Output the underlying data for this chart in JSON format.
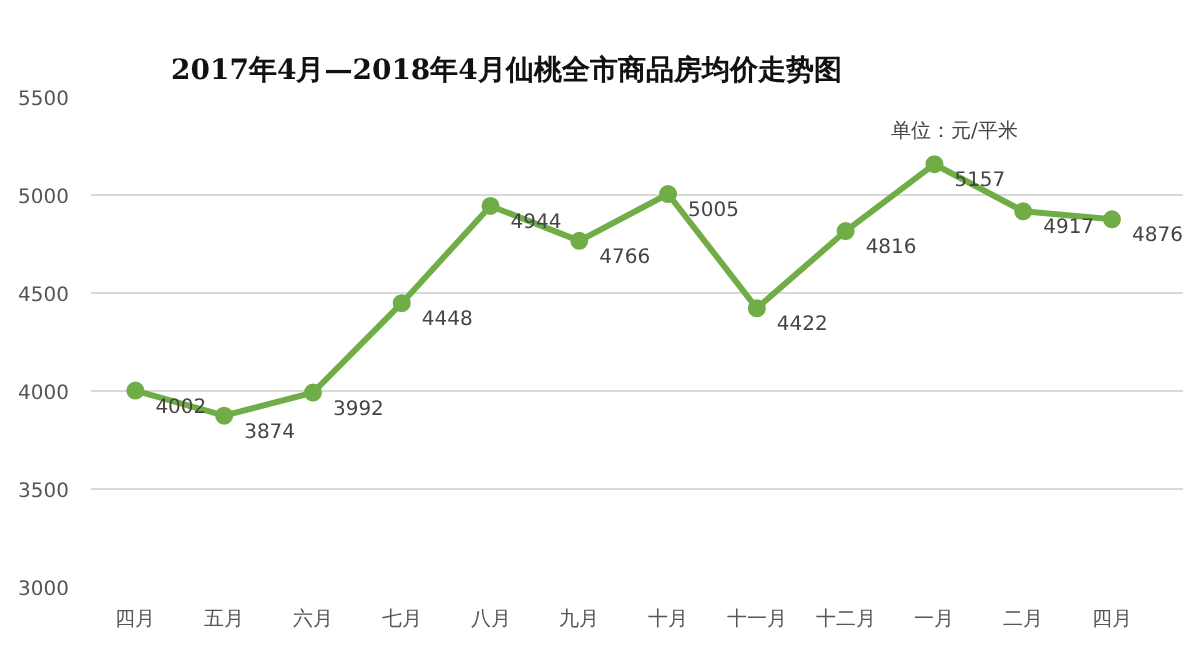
{
  "chart_data": {
    "type": "line",
    "title": "2017年4月—2018年4月仙桃全市商品房均价走势图",
    "categories": [
      "四月",
      "五月",
      "六月",
      "七月",
      "八月",
      "九月",
      "十月",
      "十一月",
      "十二月",
      "一月",
      "二月",
      "四月"
    ],
    "series": [
      {
        "color": "#70ad47",
        "values": [
          4002,
          3874,
          3992,
          4448,
          4944,
          4766,
          5005,
          4422,
          4816,
          5157,
          4917,
          4876
        ]
      }
    ],
    "ylim": [
      3000,
      5500
    ],
    "yticks": [
      3000,
      3500,
      4000,
      4500,
      5000,
      5500
    ],
    "grid": "y",
    "marker": "circle",
    "line_style": "solid",
    "data_labels": true,
    "annotations": [
      "单位：元/平米"
    ]
  }
}
